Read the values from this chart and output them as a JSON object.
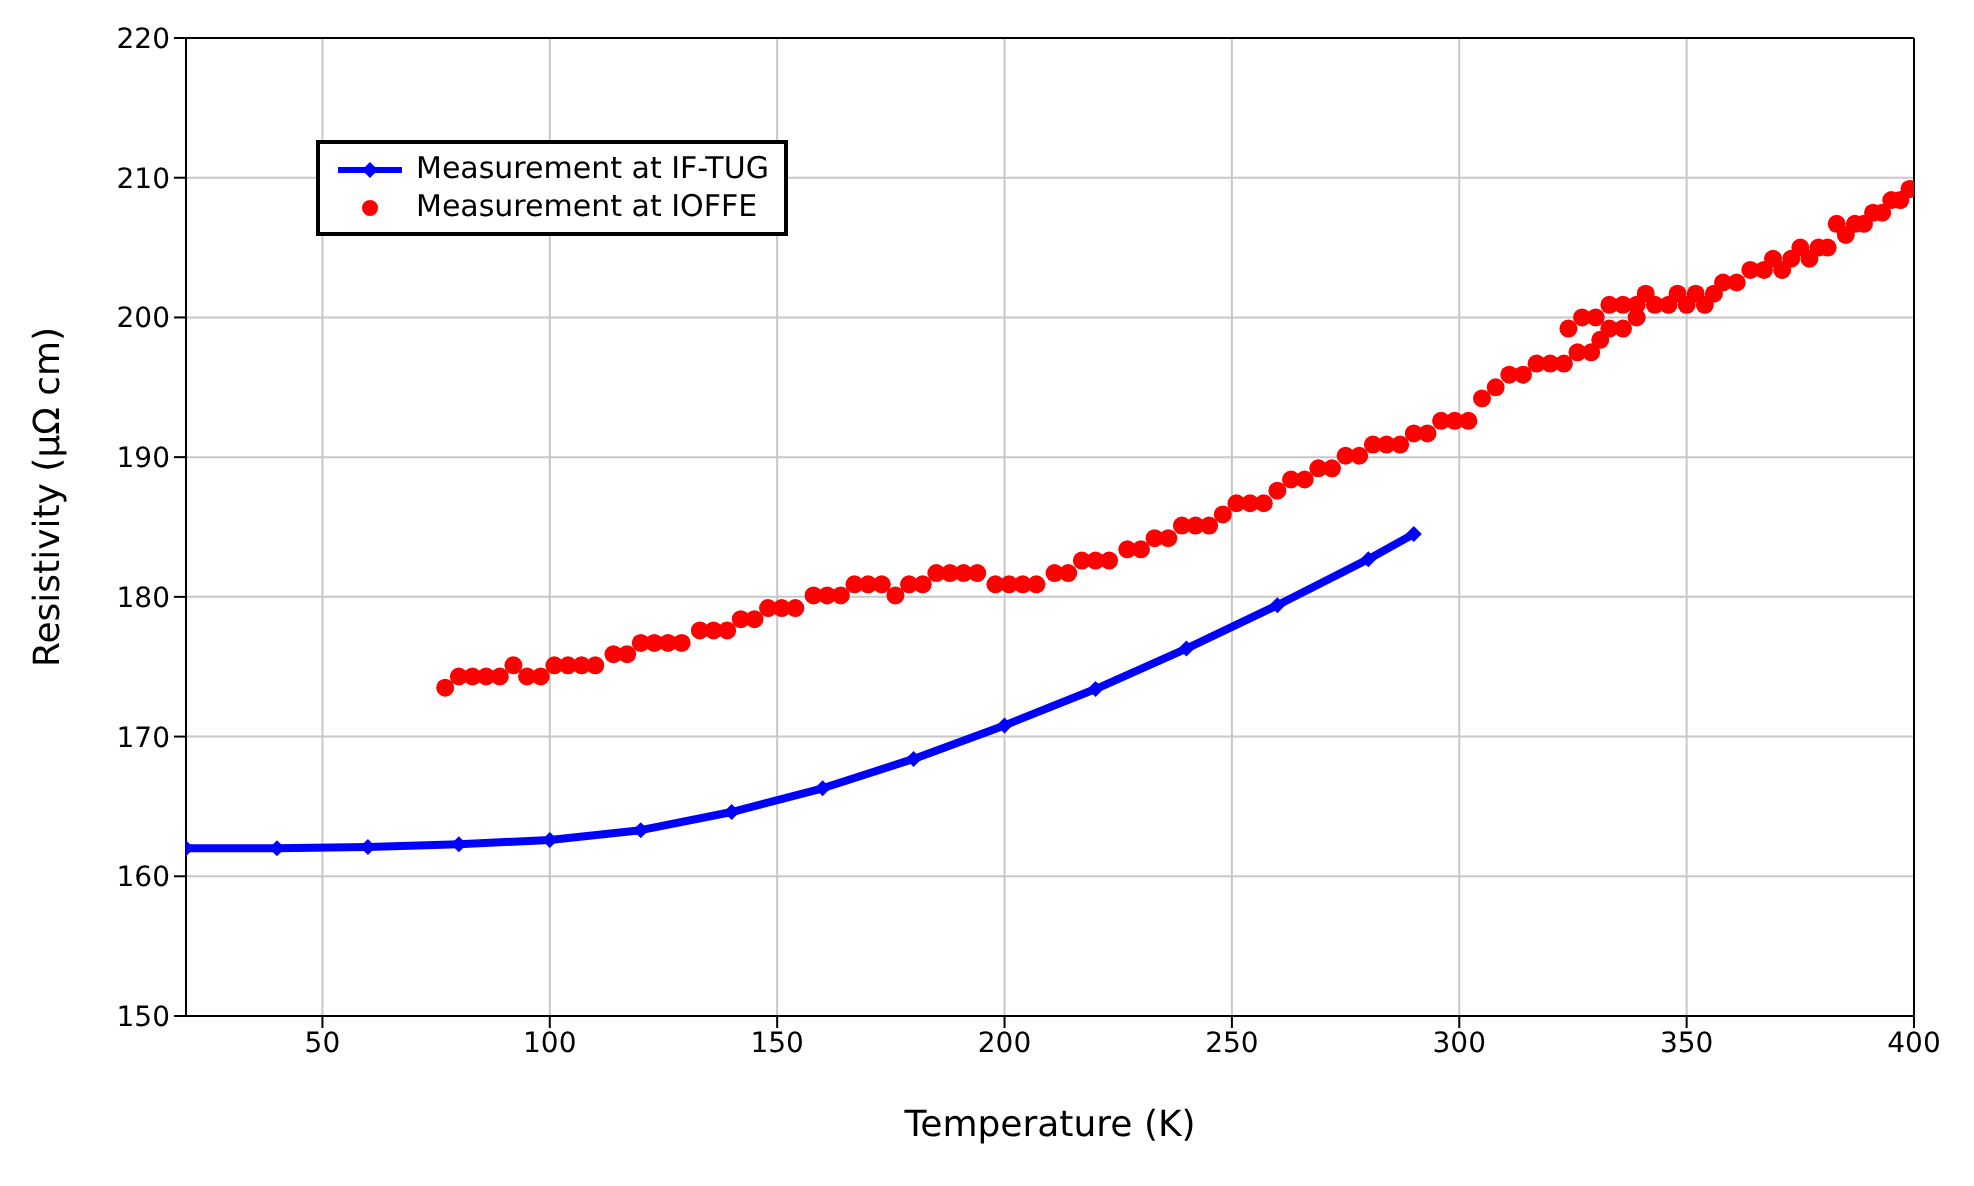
{
  "chart_data": {
    "type": "scatter",
    "xlabel": "Temperature (K)",
    "ylabel": "Resistivity (µΩ cm)",
    "xlim": [
      20,
      400
    ],
    "xticks": [
      50,
      100,
      150,
      200,
      250,
      300,
      350,
      400
    ],
    "ylim": [
      150,
      220
    ],
    "yticks": [
      150,
      160,
      170,
      180,
      190,
      200,
      210,
      220
    ],
    "grid": true,
    "legend": "top left",
    "series": [
      {
        "name": "Measurement at IF-TUG",
        "type": "line",
        "color": "#0000ff",
        "marker": "diamond",
        "x": [
          20,
          40,
          60,
          80,
          100,
          120,
          140,
          160,
          180,
          200,
          220,
          240,
          260,
          280,
          290
        ],
        "values": [
          162.0,
          162.0,
          162.1,
          162.3,
          162.6,
          163.3,
          164.6,
          166.3,
          168.4,
          170.8,
          173.4,
          176.3,
          179.4,
          182.7,
          184.5
        ]
      },
      {
        "name": "Measurement at IOFFE",
        "color": "#ff0000",
        "marker": "circle",
        "x": [
          77,
          80,
          83,
          86,
          89,
          92,
          95,
          98,
          101,
          104,
          107,
          110,
          114,
          117,
          120,
          123,
          126,
          129,
          133,
          136,
          139,
          142,
          145,
          148,
          151,
          154,
          158,
          161,
          164,
          167,
          170,
          173,
          176,
          179,
          182,
          185,
          188,
          191,
          194,
          198,
          201,
          204,
          207,
          211,
          214,
          217,
          220,
          223,
          227,
          230,
          233,
          236,
          239,
          242,
          245,
          248,
          251,
          254,
          257,
          260,
          263,
          266,
          269,
          272,
          275,
          278,
          281,
          284,
          287,
          290,
          293,
          296,
          299,
          302,
          305,
          308,
          311,
          314,
          317,
          320,
          323,
          326,
          329,
          331,
          333,
          336,
          339,
          324,
          327,
          330,
          333,
          336,
          339,
          341,
          343,
          346,
          348,
          350,
          352,
          354,
          356,
          358,
          361,
          364,
          367,
          369,
          371,
          373,
          375,
          377,
          379,
          381,
          383,
          385,
          387,
          389,
          391,
          393,
          395,
          397,
          399
        ],
        "values": [
          173.5,
          174.3,
          174.3,
          174.3,
          174.3,
          175.1,
          174.3,
          174.3,
          175.1,
          175.1,
          175.1,
          175.1,
          175.9,
          175.9,
          176.7,
          176.7,
          176.7,
          176.7,
          177.6,
          177.6,
          177.6,
          178.4,
          178.4,
          179.2,
          179.2,
          179.2,
          180.1,
          180.1,
          180.1,
          180.9,
          180.9,
          180.9,
          180.1,
          180.9,
          180.9,
          181.7,
          181.7,
          181.7,
          181.7,
          180.9,
          180.9,
          180.9,
          180.9,
          181.7,
          181.7,
          182.6,
          182.6,
          182.6,
          183.4,
          183.4,
          184.2,
          184.2,
          185.1,
          185.1,
          185.1,
          185.9,
          186.7,
          186.7,
          186.7,
          187.6,
          188.4,
          188.4,
          189.2,
          189.2,
          190.1,
          190.1,
          190.9,
          190.9,
          190.9,
          191.7,
          191.7,
          192.6,
          192.6,
          192.6,
          194.2,
          195.0,
          195.9,
          195.9,
          196.7,
          196.7,
          196.7,
          197.5,
          197.5,
          198.4,
          199.2,
          199.2,
          200.0,
          199.2,
          200.0,
          200.0,
          200.9,
          200.9,
          200.9,
          201.7,
          200.9,
          200.9,
          201.7,
          200.9,
          201.7,
          200.9,
          201.7,
          202.5,
          202.5,
          203.4,
          203.4,
          204.2,
          203.4,
          204.2,
          205.0,
          204.2,
          205.0,
          205.0,
          206.7,
          205.9,
          206.7,
          206.7,
          207.5,
          207.5,
          208.4,
          208.4,
          209.2
        ]
      }
    ]
  }
}
